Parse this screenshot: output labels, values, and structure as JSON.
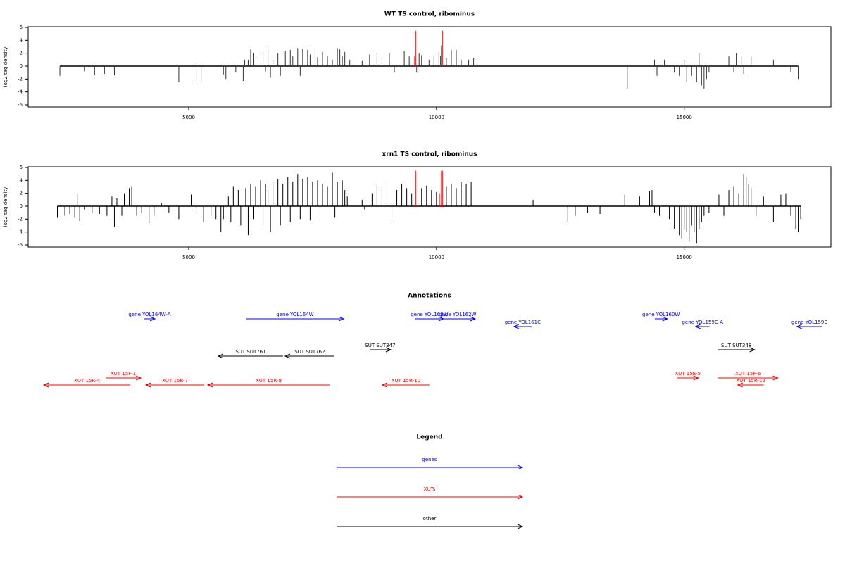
{
  "chart_data": [
    {
      "type": "spike",
      "title": "WT TS control, ribominus",
      "y_label": "log2 tag density",
      "xlim": [
        1760,
        17960
      ],
      "ylim": [
        -6,
        6
      ],
      "xticks": [
        5000,
        10000,
        15000
      ],
      "yticks": [
        -6,
        -4,
        -2,
        0,
        2,
        4,
        6
      ],
      "series": [
        {
          "color": "#333333",
          "x": [
            2400,
            2900,
            3100,
            3300,
            3500,
            4800,
            5150,
            5250,
            5700,
            5750,
            5950,
            6100,
            6130,
            6200,
            6250,
            6300,
            6400,
            6500,
            6550,
            6600,
            6650,
            6700,
            6800,
            6850,
            6950,
            7050,
            7100,
            7200,
            7250,
            7300,
            7400,
            7450,
            7550,
            7600,
            7700,
            7800,
            7900,
            8000,
            8050,
            8100,
            8150,
            8250,
            8500,
            8650,
            8800,
            8900,
            9050,
            9150,
            9350,
            9450,
            9650,
            9700,
            9850,
            9950,
            10050,
            10100,
            10200,
            10300,
            10400,
            10500,
            10650,
            10750,
            13850,
            14400,
            14450,
            14600,
            14800,
            14900,
            15000,
            15050,
            15150,
            15250,
            15300,
            15350,
            15400,
            15450,
            15500,
            15900,
            16000,
            16050,
            16150,
            16200,
            16350,
            16800,
            17150,
            17300
          ],
          "values": [
            -1.5,
            -0.8,
            -1.4,
            -1.2,
            -1.4,
            -2.5,
            -2.4,
            -2.5,
            -1.3,
            -2,
            -1,
            -2.3,
            1,
            1,
            2.6,
            2,
            1.5,
            2.2,
            -0.8,
            2.5,
            -1.8,
            1,
            2,
            -1.5,
            2.3,
            2.5,
            1.5,
            2.8,
            -1.5,
            2.7,
            2.5,
            1.8,
            2.6,
            1.4,
            2.2,
            1.5,
            1,
            2.8,
            2.6,
            1.5,
            2.2,
            1,
            0.9,
            1.8,
            2,
            1.2,
            2,
            -1,
            2.3,
            1.5,
            2,
            1.7,
            1,
            1.6,
            2.2,
            3.2,
            1.2,
            2.5,
            2.5,
            1,
            1,
            1.2,
            -3.5,
            1,
            -1.5,
            1,
            -1,
            -1.5,
            1,
            -2.5,
            -1.5,
            -2.5,
            2,
            -3,
            -3.5,
            -2,
            -1,
            1.5,
            -1,
            2,
            1.5,
            -1.2,
            1.5,
            1,
            -1,
            -2
          ]
        },
        {
          "color": "#ff0000",
          "x": [
            9560,
            9580,
            9600,
            10080,
            10120
          ],
          "values": [
            1.5,
            5.5,
            -1,
            1.6,
            5.5
          ]
        }
      ]
    },
    {
      "type": "spike",
      "title": "xrn1 TS control, ribominus",
      "y_label": "log2 tag density",
      "xlim": [
        1760,
        17960
      ],
      "ylim": [
        -6,
        6
      ],
      "xticks": [
        5000,
        10000,
        15000
      ],
      "yticks": [
        -6,
        -4,
        -2,
        0,
        2,
        4,
        6
      ],
      "series": [
        {
          "color": "#000000",
          "x": [
            2350,
            2500,
            2600,
            2700,
            2750,
            2800,
            2900,
            3050,
            3200,
            3350,
            3450,
            3500,
            3550,
            3650,
            3700,
            3800,
            3850,
            3950,
            4050,
            4200,
            4300,
            4450,
            4600,
            4800,
            5050,
            5150,
            5300,
            5450,
            5550,
            5650,
            5700,
            5800,
            5850,
            5900,
            6000,
            6050,
            6150,
            6200,
            6250,
            6300,
            6350,
            6450,
            6500,
            6550,
            6600,
            6650,
            6700,
            6800,
            6850,
            6900,
            7000,
            7050,
            7100,
            7200,
            7250,
            7300,
            7400,
            7450,
            7500,
            7600,
            7650,
            7700,
            7800,
            7900,
            7950,
            8000,
            8100,
            8150,
            8200,
            8500,
            8550,
            8700,
            8800,
            8900,
            9000,
            9100,
            9200,
            9300,
            9400,
            9500,
            9700,
            9800,
            9900,
            10000,
            10200,
            10300,
            10400,
            10500,
            10600,
            10700,
            11950,
            12650,
            12800,
            13050,
            13300,
            13800,
            14100,
            14300,
            14350,
            14400,
            14500,
            14700,
            14800,
            14900,
            14950,
            15000,
            15050,
            15100,
            15150,
            15200,
            15250,
            15300,
            15350,
            15400,
            15500,
            15700,
            15800,
            15900,
            16000,
            16100,
            16200,
            16250,
            16300,
            16350,
            16450,
            16600,
            16800,
            16950,
            17050,
            17150,
            17250,
            17300,
            17350
          ],
          "values": [
            -1.8,
            -1.5,
            -1.2,
            -1.8,
            2,
            -2.3,
            -0.5,
            -1,
            -1.2,
            -1.5,
            1.5,
            -3.2,
            1.2,
            -1.5,
            2,
            2.8,
            3,
            -1.5,
            -1,
            -2.6,
            -1.5,
            0.5,
            -1,
            -2,
            1.8,
            -1,
            -2.5,
            -1.5,
            -2,
            -4,
            -2,
            1.5,
            -2.5,
            3,
            2.5,
            -3,
            2.8,
            -4.5,
            3.5,
            -2,
            3,
            4,
            -3,
            3.5,
            2.5,
            -4,
            3.8,
            4.2,
            -3,
            3.5,
            4.5,
            -2.5,
            3.8,
            5,
            -2,
            4.2,
            4.5,
            -2.2,
            3.8,
            4,
            -1.5,
            3.5,
            3,
            5.2,
            -1.8,
            3.8,
            4,
            2.5,
            1.5,
            1,
            -0.5,
            2,
            3.5,
            2.5,
            3.2,
            -2.5,
            2.5,
            3.5,
            2.8,
            2,
            2.8,
            3.2,
            2.5,
            2.2,
            3,
            3.5,
            2.8,
            3.8,
            3.5,
            3.8,
            1,
            -2.5,
            -1.5,
            -1,
            -1.2,
            1.8,
            1.5,
            2.3,
            2.5,
            -1,
            -1.5,
            -2,
            -3.5,
            -4.5,
            -5,
            -3.5,
            -4,
            -5.5,
            -3,
            -4,
            -5.8,
            -3.5,
            -2.5,
            -1.5,
            -1,
            1.8,
            -1.5,
            2.5,
            3,
            2,
            5,
            4.5,
            3.5,
            2.8,
            -1.5,
            1.5,
            -2.5,
            1.8,
            2,
            -1.5,
            -3.5,
            -4,
            -2
          ]
        },
        {
          "color": "#ff0000",
          "x": [
            9580,
            10060,
            10100,
            10120
          ],
          "values": [
            5.5,
            2,
            5.5,
            5.5
          ]
        }
      ]
    }
  ],
  "annotations": {
    "title": "Annotations",
    "groups": [
      {
        "color": "#0000ff",
        "items": [
          {
            "label": "gene YOL164W-A",
            "start": 4105,
            "end": 4318
          },
          {
            "label": "gene YOL164W",
            "start": 6165,
            "end": 8125
          },
          {
            "label": "gene YOL163W",
            "start": 9574,
            "end": 10142
          },
          {
            "label": "gene YOL162W",
            "start": 10071,
            "end": 10781
          },
          {
            "label": "gene YOL161C",
            "start": 11918,
            "end": 11563
          },
          {
            "label": "gene YOL160W",
            "start": 14403,
            "end": 14659
          },
          {
            "label": "gene YOL159C-A",
            "start": 15511,
            "end": 15227
          },
          {
            "label": "gene YOL159C",
            "start": 17784,
            "end": 17273
          }
        ]
      },
      {
        "color": "#000000",
        "items": [
          {
            "label": "SUT SUT347",
            "start": 8651,
            "end": 9077
          },
          {
            "label": "SUT SUT761",
            "start": 6903,
            "end": 5597
          },
          {
            "label": "SUT SUT762",
            "start": 7940,
            "end": 6946
          },
          {
            "label": "SUT SUT348",
            "start": 15682,
            "end": 16420
          }
        ]
      },
      {
        "color": "#ff0000",
        "items": [
          {
            "label": "XUT 15F-1",
            "start": 3324,
            "end": 4034
          },
          {
            "label": "XUT 15R-4",
            "start": 3821,
            "end": 2074
          },
          {
            "label": "XUT 15R-7",
            "start": 5313,
            "end": 4134
          },
          {
            "label": "XUT 15R-8",
            "start": 7841,
            "end": 5384
          },
          {
            "label": "XUT 15R-10",
            "start": 9858,
            "end": 8906
          },
          {
            "label": "XUT 15E-5",
            "start": 14858,
            "end": 15284
          },
          {
            "label": "XUT 15F-6",
            "start": 15682,
            "end": 16889
          },
          {
            "label": "XUT 15R-12",
            "start": 16605,
            "end": 16080
          }
        ]
      }
    ]
  },
  "legend": {
    "title": "Legend",
    "items": [
      {
        "label": "genes",
        "color": "#0000ff"
      },
      {
        "label": "XUTs",
        "color": "#ff0000"
      },
      {
        "label": "other",
        "color": "#000000"
      }
    ]
  }
}
